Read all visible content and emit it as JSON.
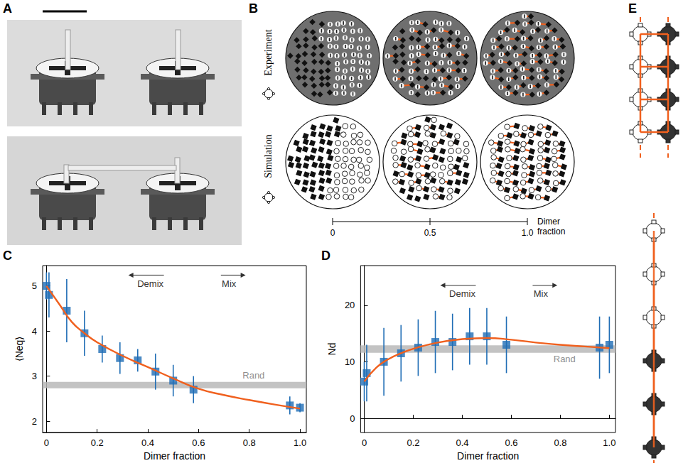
{
  "figure": {
    "panel_labels": [
      "A",
      "B",
      "C",
      "D",
      "E"
    ],
    "panel_B": {
      "row_labels": [
        "Experiment",
        "Simulation"
      ],
      "scale_title": "Dimer fraction",
      "scale_ticks": [
        0,
        0.5,
        {
          "value": 1,
          "label": "1.0"
        }
      ]
    }
  },
  "chart_data": [
    {
      "type": "scatter",
      "xlabel": "Dimer fraction",
      "ylabel": "⟨Neq⟩",
      "x": [
        0,
        0.01,
        0.08,
        0.15,
        0.22,
        0.29,
        0.36,
        0.43,
        0.5,
        0.58,
        0.96,
        1.0
      ],
      "values": [
        5.0,
        4.8,
        4.45,
        3.95,
        3.6,
        3.4,
        3.35,
        3.1,
        2.9,
        2.7,
        2.35,
        2.3
      ],
      "errors": [
        0.3,
        0.5,
        0.7,
        0.5,
        0.3,
        0.35,
        0.25,
        0.4,
        0.35,
        0.3,
        0.2,
        0.1
      ],
      "color": "#1f6db5",
      "marker": "square",
      "fit": {
        "type": "line",
        "color": "#f0601e",
        "x": [
          0,
          0.05,
          0.1,
          0.15,
          0.2,
          0.3,
          0.4,
          0.5,
          0.6,
          0.7,
          0.8,
          0.9,
          1.0
        ],
        "values": [
          5.0,
          4.6,
          4.2,
          3.95,
          3.75,
          3.45,
          3.2,
          2.95,
          2.72,
          2.58,
          2.47,
          2.37,
          2.28
        ]
      },
      "reference_band": {
        "label": "Rand",
        "low": 2.73,
        "high": 2.87,
        "color": "#b9b9b9"
      },
      "annotations": [
        {
          "text": "Demix",
          "x": 0.41,
          "y": 5.05
        },
        {
          "text": "Mix",
          "x": 0.72,
          "y": 5.05
        }
      ],
      "xlim": [
        -0.015,
        1.025
      ],
      "ylim": [
        1.75,
        5.45
      ],
      "xticks": [
        0,
        0.2,
        0.4,
        0.6,
        0.8,
        {
          "value": 1,
          "label": "1.0"
        }
      ],
      "yticks": [
        2,
        3,
        4,
        5
      ],
      "grid": false
    },
    {
      "type": "scatter",
      "xlabel": "Dimer fraction",
      "ylabel": "Nd",
      "x": [
        0,
        0.01,
        0.08,
        0.15,
        0.22,
        0.29,
        0.36,
        0.43,
        0.5,
        0.58,
        0.96,
        1.0
      ],
      "values": [
        6.5,
        8,
        10,
        11.5,
        12.5,
        13.5,
        13.5,
        14.5,
        14.5,
        13,
        12.5,
        13
      ],
      "errors": [
        3.5,
        5,
        6,
        5,
        5,
        5.5,
        5,
        5,
        5,
        5,
        5.5,
        5
      ],
      "color": "#1f6db5",
      "marker": "square",
      "fit": {
        "type": "line",
        "color": "#f0601e",
        "x": [
          0,
          0.05,
          0.1,
          0.15,
          0.2,
          0.3,
          0.4,
          0.5,
          0.6,
          0.7,
          0.8,
          0.9,
          1.0
        ],
        "values": [
          6.5,
          9,
          10.5,
          11.5,
          12.3,
          13.4,
          14,
          14.2,
          13.9,
          13.4,
          13,
          12.7,
          12.4
        ]
      },
      "reference_band": {
        "label": "Rand",
        "low": 11.6,
        "high": 12.9,
        "color": "#b9b9b9"
      },
      "annotations": [
        {
          "text": "Demix",
          "x": 0.4,
          "y": 22
        },
        {
          "text": "Mix",
          "x": 0.72,
          "y": 22
        }
      ],
      "xlim": [
        -0.015,
        1.025
      ],
      "ylim": [
        -2.5,
        27
      ],
      "xticks": [
        0,
        0.2,
        0.4,
        0.6,
        0.8,
        {
          "value": 1,
          "label": "1.0"
        }
      ],
      "yticks": [
        0,
        10,
        20
      ],
      "grid": false
    }
  ]
}
